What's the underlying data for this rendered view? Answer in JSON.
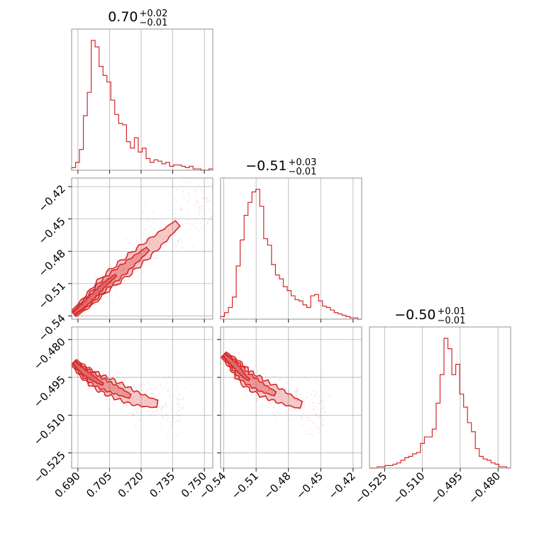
{
  "chart_data": {
    "type": "corner",
    "color": "#d62728",
    "params": [
      {
        "title": {
          "main": "0.70",
          "plus": "+0.02",
          "minus": "−0.01"
        },
        "range": [
          0.687,
          0.754
        ],
        "ticks": [
          0.69,
          0.705,
          0.72,
          0.735,
          0.75
        ],
        "tick_labels": [
          "0.690",
          "0.705",
          "0.720",
          "0.735",
          "0.750"
        ],
        "histogram": [
          2,
          6,
          16,
          42,
          60,
          100,
          95,
          80,
          73,
          68,
          54,
          43,
          36,
          35,
          22,
          17,
          25,
          14,
          17,
          9,
          6,
          8,
          7,
          5,
          6,
          3,
          4,
          4,
          3,
          2,
          3,
          1,
          1,
          0,
          0,
          1
        ]
      },
      {
        "title": {
          "main": "−0.51",
          "plus": "+0.03",
          "minus": "−0.01"
        },
        "range": [
          -0.543,
          -0.412
        ],
        "ticks": [
          -0.54,
          -0.51,
          -0.48,
          -0.45,
          -0.42
        ],
        "tick_labels": [
          "−0.54",
          "−0.51",
          "−0.48",
          "−0.45",
          "−0.42"
        ],
        "histogram": [
          2,
          5,
          9,
          17,
          41,
          61,
          80,
          90,
          98,
          100,
          87,
          62,
          57,
          42,
          34,
          31,
          25,
          22,
          18,
          15,
          14,
          11,
          9,
          18,
          19,
          14,
          10,
          9,
          7,
          5,
          4,
          3,
          2,
          1,
          1,
          0
        ]
      },
      {
        "title": {
          "main": "−0.50",
          "plus": "+0.01",
          "minus": "−0.01"
        },
        "range": [
          -0.531,
          -0.475
        ],
        "ticks": [
          -0.525,
          -0.51,
          -0.495,
          -0.48
        ],
        "tick_labels": [
          "−0.525",
          "−0.510",
          "−0.495",
          "−0.480"
        ],
        "histogram": [
          0,
          0,
          1,
          1,
          2,
          2,
          3,
          4,
          6,
          8,
          9,
          11,
          12,
          19,
          24,
          24,
          30,
          50,
          72,
          100,
          92,
          72,
          80,
          57,
          47,
          35,
          28,
          15,
          9,
          7,
          6,
          4,
          3,
          1,
          1,
          0
        ]
      }
    ],
    "pairs": [
      {
        "x_param": 0,
        "y_param": 1,
        "x_range": [
          0.687,
          0.754
        ],
        "y_range": [
          -0.543,
          -0.412
        ],
        "y_ticks": [
          -0.54,
          -0.51,
          -0.48,
          -0.45,
          -0.42
        ],
        "y_tick_labels": [
          "−0.54",
          "−0.51",
          "−0.48",
          "−0.45",
          "−0.42"
        ],
        "trend": {
          "x": [
            0.688,
            0.695,
            0.703,
            0.712,
            0.72,
            0.728,
            0.735,
            0.745,
            0.752
          ],
          "y": [
            -0.538,
            -0.526,
            -0.51,
            -0.496,
            -0.483,
            -0.47,
            -0.458,
            -0.442,
            -0.431
          ]
        }
      },
      {
        "x_param": 0,
        "y_param": 2,
        "x_range": [
          0.687,
          0.754
        ],
        "y_range": [
          -0.531,
          -0.475
        ],
        "y_ticks": [
          -0.525,
          -0.51,
          -0.495,
          -0.48
        ],
        "y_tick_labels": [
          "−0.525",
          "−0.510",
          "−0.495",
          "−0.480"
        ],
        "trend": {
          "x": [
            0.688,
            0.693,
            0.7,
            0.708,
            0.716,
            0.724,
            0.732,
            0.74
          ],
          "y": [
            -0.489,
            -0.493,
            -0.497,
            -0.5,
            -0.503,
            -0.505,
            -0.506,
            -0.507
          ]
        }
      },
      {
        "x_param": 1,
        "y_param": 2,
        "x_range": [
          -0.543,
          -0.412
        ],
        "y_range": [
          -0.531,
          -0.475
        ],
        "y_ticks": [
          -0.525,
          -0.51,
          -0.495,
          -0.48
        ],
        "y_tick_labels": [
          "−0.525",
          "−0.510",
          "−0.495",
          "−0.480"
        ],
        "trend": {
          "x": [
            -0.54,
            -0.53,
            -0.52,
            -0.505,
            -0.49,
            -0.475,
            -0.46,
            -0.445
          ],
          "y": [
            -0.486,
            -0.49,
            -0.495,
            -0.499,
            -0.502,
            -0.505,
            -0.507,
            -0.508
          ]
        }
      }
    ],
    "grid": true,
    "contour_levels": 3
  }
}
